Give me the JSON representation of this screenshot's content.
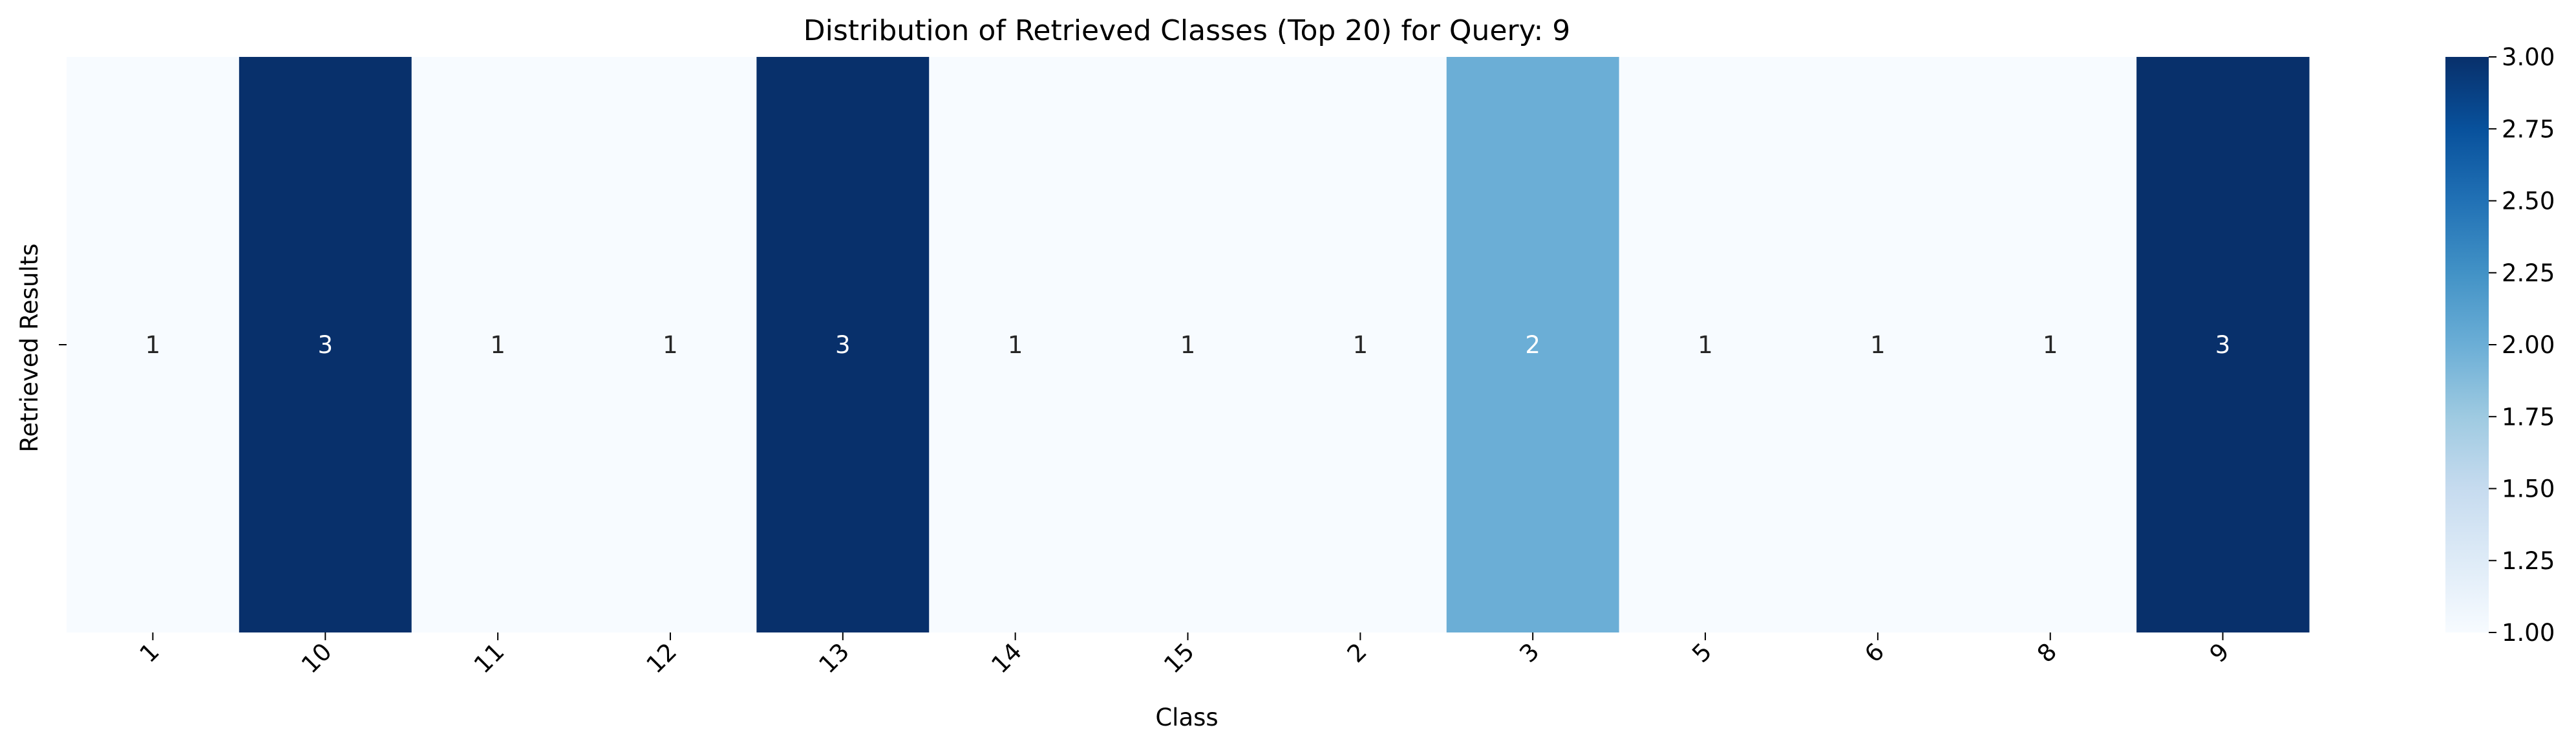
{
  "chart_data": {
    "type": "heatmap",
    "title": "Distribution of Retrieved Classes (Top 20) for Query: 9",
    "xlabel": "Class",
    "ylabel": "Retrieved Results",
    "categories": [
      "1",
      "10",
      "11",
      "12",
      "13",
      "14",
      "15",
      "2",
      "3",
      "5",
      "6",
      "8",
      "9"
    ],
    "rows": [
      ""
    ],
    "values": [
      [
        1,
        3,
        1,
        1,
        3,
        1,
        1,
        1,
        2,
        1,
        1,
        1,
        3
      ]
    ],
    "annotations": true,
    "colormap": "Blues",
    "colorbar": {
      "range": [
        1.0,
        3.0
      ],
      "ticks": [
        "1.00",
        "1.25",
        "1.50",
        "1.75",
        "2.00",
        "2.25",
        "2.50",
        "2.75",
        "3.00"
      ]
    },
    "grid": false,
    "legend": "none"
  }
}
